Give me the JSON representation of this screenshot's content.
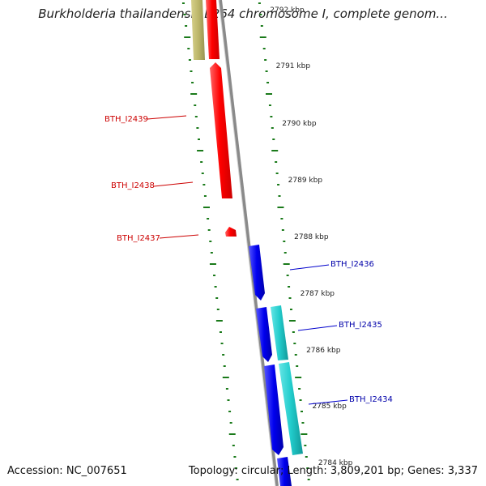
{
  "title": "Burkholderia thailandensis E264 chromosome I, complete genom...",
  "footer": {
    "accession": "Accession: NC_007651",
    "summary": "Topology: circular; Length: 3,809,201 bp; Genes: 3,337"
  },
  "ruler": [
    "2792 kbp",
    "2791 kbp",
    "2790 kbp",
    "2789 kbp",
    "2788 kbp",
    "2787 kbp",
    "2786 kbp",
    "2785 kbp",
    "2784 kbp"
  ],
  "genes": [
    {
      "name": "BTH_I2439",
      "strand": "reverse",
      "color": "#cc0000"
    },
    {
      "name": "BTH_I2438",
      "strand": "reverse",
      "color": "#cc0000"
    },
    {
      "name": "BTH_I2437",
      "strand": "reverse",
      "color": "#cc0000"
    },
    {
      "name": "BTH_I2436",
      "strand": "forward",
      "color": "#0000aa"
    },
    {
      "name": "BTH_I2435",
      "strand": "forward",
      "color": "#0000aa"
    },
    {
      "name": "BTH_I2434",
      "strand": "forward",
      "color": "#0000aa"
    }
  ],
  "colors": {
    "reverse_gene": "#ff0000",
    "forward_gene": "#0000ee",
    "cyan_gene": "#22cccc",
    "olive_gene": "#bdb76b",
    "backbone": "#888888",
    "ticks": "#1a7a1a"
  }
}
